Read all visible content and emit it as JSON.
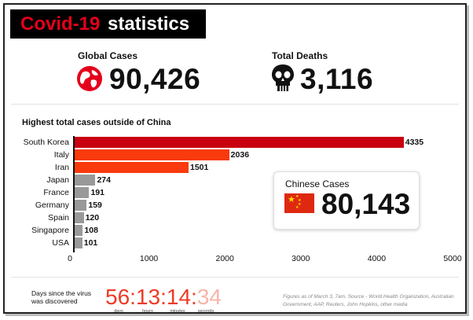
{
  "banner": {
    "title_red": "Covid-19",
    "title_white": "statistics"
  },
  "global_cases": {
    "label": "Global Cases",
    "value": "90,426",
    "icon": "globe-icon"
  },
  "total_deaths": {
    "label": "Total Deaths",
    "value": "3,116",
    "icon": "skull-icon"
  },
  "chinese_cases": {
    "label": "Chinese Cases",
    "value": "80,143",
    "icon": "china-flag-icon"
  },
  "counter": {
    "label": "Days since the virus was discovered",
    "days": "56",
    "hours": "13",
    "minutes": "14",
    "seconds": "34",
    "sep": ":",
    "units": {
      "days": "days",
      "hours": "hours",
      "minutes": "minutes",
      "seconds": "seconds"
    }
  },
  "source": "Figures as of March 3, 7am. Source - World Health Organization, Australian Government, AAP, Reuters, John Hopkins, other media",
  "colors": {
    "accent": "#e4001b",
    "bar_top": "#c9000f",
    "bar_mid": "#f93a0c",
    "bar_other": "#999999"
  },
  "chart_data": {
    "type": "bar",
    "orientation": "horizontal",
    "title": "Highest total cases outside of China",
    "categories": [
      "South Korea",
      "Italy",
      "Iran",
      "Japan",
      "France",
      "Germany",
      "Spain",
      "Singapore",
      "USA"
    ],
    "values": [
      4335,
      2036,
      1501,
      274,
      191,
      159,
      120,
      108,
      101
    ],
    "xlim": [
      0,
      5000
    ],
    "xticks": [
      0,
      1000,
      2000,
      3000,
      4000,
      5000
    ],
    "bar_colors": [
      "#c9000f",
      "#f93a0c",
      "#f93a0c",
      "#999999",
      "#999999",
      "#999999",
      "#999999",
      "#999999",
      "#999999"
    ],
    "grid": false
  }
}
